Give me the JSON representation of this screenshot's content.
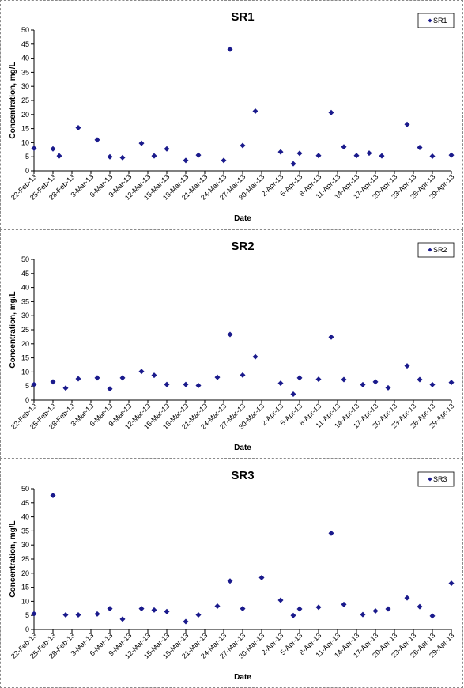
{
  "chart_data": [
    {
      "type": "scatter",
      "title": "SR1",
      "xlabel": "Date",
      "ylabel": "Concentration, mg/L",
      "ylim": [
        0,
        50
      ],
      "yticks": [
        0,
        5,
        10,
        15,
        20,
        25,
        30,
        35,
        40,
        45,
        50
      ],
      "xticks": [
        "22-Feb-13",
        "25-Feb-13",
        "28-Feb-13",
        "3-Mar-13",
        "6-Mar-13",
        "9-Mar-13",
        "12-Mar-13",
        "15-Mar-13",
        "18-Mar-13",
        "21-Mar-13",
        "24-Mar-13",
        "27-Mar-13",
        "30-Mar-13",
        "2-Apr-13",
        "5-Apr-13",
        "8-Apr-13",
        "11-Apr-13",
        "14-Apr-13",
        "17-Apr-13",
        "20-Apr-13",
        "23-Apr-13",
        "26-Apr-13",
        "29-Apr-13"
      ],
      "xlim": [
        "22-Feb-13",
        "29-Apr-13"
      ],
      "grid": false,
      "legend": "top-right",
      "marker_color": "#1a1a8c",
      "series": [
        {
          "name": "SR1",
          "x": [
            "22-Feb-13",
            "25-Feb-13",
            "26-Feb-13",
            "1-Mar-13",
            "4-Mar-13",
            "6-Mar-13",
            "8-Mar-13",
            "11-Mar-13",
            "13-Mar-13",
            "15-Mar-13",
            "18-Mar-13",
            "20-Mar-13",
            "24-Mar-13",
            "25-Mar-13",
            "27-Mar-13",
            "29-Mar-13",
            "2-Apr-13",
            "4-Apr-13",
            "5-Apr-13",
            "8-Apr-13",
            "10-Apr-13",
            "12-Apr-13",
            "14-Apr-13",
            "16-Apr-13",
            "18-Apr-13",
            "22-Apr-13",
            "24-Apr-13",
            "26-Apr-13",
            "29-Apr-13"
          ],
          "y": [
            8,
            7.8,
            5.3,
            15.3,
            11,
            5,
            4.7,
            9.8,
            5.3,
            7.8,
            3.7,
            5.6,
            3.7,
            43.2,
            9,
            21.2,
            6.7,
            2.5,
            6.2,
            5.4,
            20.7,
            8.5,
            5.4,
            6.3,
            5.3,
            16.5,
            8.3,
            5.2,
            5.6
          ]
        }
      ]
    },
    {
      "type": "scatter",
      "title": "SR2",
      "xlabel": "Date",
      "ylabel": "Concentration, mg/L",
      "ylim": [
        0,
        50
      ],
      "yticks": [
        0,
        5,
        10,
        15,
        20,
        25,
        30,
        35,
        40,
        45,
        50
      ],
      "xticks": [
        "22-Feb-13",
        "25-Feb-13",
        "28-Feb-13",
        "3-Mar-13",
        "6-Mar-13",
        "9-Mar-13",
        "12-Mar-13",
        "15-Mar-13",
        "18-Mar-13",
        "21-Mar-13",
        "24-Mar-13",
        "27-Mar-13",
        "30-Mar-13",
        "2-Apr-13",
        "5-Apr-13",
        "8-Apr-13",
        "11-Apr-13",
        "14-Apr-13",
        "17-Apr-13",
        "20-Apr-13",
        "23-Apr-13",
        "26-Apr-13",
        "29-Apr-13"
      ],
      "xlim": [
        "22-Feb-13",
        "29-Apr-13"
      ],
      "grid": false,
      "legend": "top-right",
      "marker_color": "#1a1a8c",
      "series": [
        {
          "name": "SR2",
          "x": [
            "22-Feb-13",
            "25-Feb-13",
            "27-Feb-13",
            "1-Mar-13",
            "4-Mar-13",
            "6-Mar-13",
            "8-Mar-13",
            "11-Mar-13",
            "13-Mar-13",
            "15-Mar-13",
            "18-Mar-13",
            "20-Mar-13",
            "23-Mar-13",
            "25-Mar-13",
            "27-Mar-13",
            "29-Mar-13",
            "2-Apr-13",
            "4-Apr-13",
            "5-Apr-13",
            "8-Apr-13",
            "10-Apr-13",
            "12-Apr-13",
            "15-Apr-13",
            "17-Apr-13",
            "19-Apr-13",
            "22-Apr-13",
            "24-Apr-13",
            "26-Apr-13",
            "29-Apr-13"
          ],
          "y": [
            5.6,
            6.5,
            4.3,
            7.6,
            7.9,
            4,
            7.9,
            10.2,
            8.8,
            5.6,
            5.6,
            5.2,
            8.1,
            23.3,
            8.9,
            15.4,
            6,
            2.1,
            7.9,
            7.4,
            22.4,
            7.3,
            5.5,
            6.5,
            4.4,
            12.2,
            7.3,
            5.5,
            6.3
          ]
        }
      ]
    },
    {
      "type": "scatter",
      "title": "SR3",
      "xlabel": "Date",
      "ylabel": "Concentration, mg/L",
      "ylim": [
        0,
        50
      ],
      "yticks": [
        0,
        5,
        10,
        15,
        20,
        25,
        30,
        35,
        40,
        45,
        50
      ],
      "xticks": [
        "22-Feb-13",
        "25-Feb-13",
        "28-Feb-13",
        "3-Mar-13",
        "6-Mar-13",
        "9-Mar-13",
        "12-Mar-13",
        "15-Mar-13",
        "18-Mar-13",
        "21-Mar-13",
        "24-Mar-13",
        "27-Mar-13",
        "30-Mar-13",
        "2-Apr-13",
        "5-Apr-13",
        "8-Apr-13",
        "11-Apr-13",
        "14-Apr-13",
        "17-Apr-13",
        "20-Apr-13",
        "23-Apr-13",
        "26-Apr-13",
        "29-Apr-13"
      ],
      "xlim": [
        "22-Feb-13",
        "29-Apr-13"
      ],
      "grid": false,
      "legend": "top-right",
      "marker_color": "#1a1a8c",
      "series": [
        {
          "name": "SR3",
          "x": [
            "22-Feb-13",
            "25-Feb-13",
            "27-Feb-13",
            "1-Mar-13",
            "4-Mar-13",
            "6-Mar-13",
            "8-Mar-13",
            "11-Mar-13",
            "13-Mar-13",
            "15-Mar-13",
            "18-Mar-13",
            "20-Mar-13",
            "23-Mar-13",
            "25-Mar-13",
            "27-Mar-13",
            "30-Mar-13",
            "2-Apr-13",
            "4-Apr-13",
            "5-Apr-13",
            "8-Apr-13",
            "10-Apr-13",
            "12-Apr-13",
            "15-Apr-13",
            "17-Apr-13",
            "19-Apr-13",
            "22-Apr-13",
            "24-Apr-13",
            "26-Apr-13",
            "29-Apr-13"
          ],
          "y": [
            5.6,
            47.6,
            5.2,
            5.2,
            5.5,
            7.4,
            3.7,
            7.4,
            6.9,
            6.4,
            2.8,
            5.2,
            8.3,
            17.2,
            7.4,
            18.4,
            10.4,
            5,
            7.3,
            7.9,
            34.2,
            8.9,
            5.3,
            6.6,
            7.3,
            11.2,
            8.1,
            4.8,
            16.4
          ]
        }
      ]
    }
  ]
}
